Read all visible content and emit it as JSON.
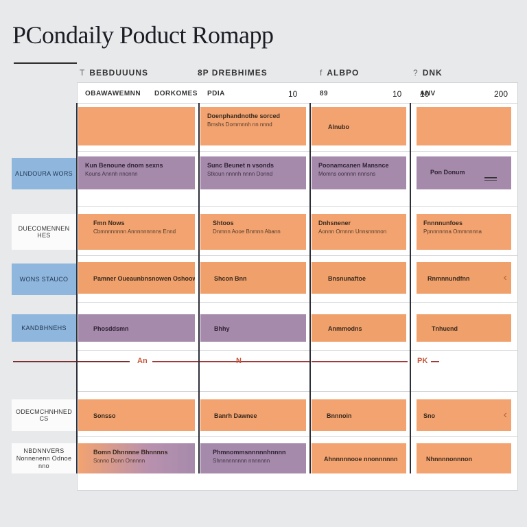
{
  "title": "PCondaily Poduct Romapp",
  "columns": [
    {
      "header": "BEBDUUUNS",
      "icon": "T",
      "subheads": [
        "OBAWAWEMNN",
        "DORKOMES"
      ],
      "number": "10"
    },
    {
      "header": "8P DREBHIMES",
      "icon": "",
      "subheads": [
        "PDIA"
      ],
      "number": "10"
    },
    {
      "header": "ALBPO",
      "icon": "f",
      "subheads": [
        "89"
      ],
      "number": "10"
    },
    {
      "header": "DNK",
      "icon": "?",
      "subheads": [
        "ANV"
      ],
      "number": "200"
    }
  ],
  "lanes": [
    {
      "label": "",
      "cards": [
        {
          "title": "",
          "sub": "",
          "color": "orange"
        },
        {
          "title": "Doenphandnothe sorced",
          "sub": "Bmshs Dommnnh nn nnnd",
          "color": "orange"
        },
        {
          "title": "Alnubo",
          "sub": "",
          "color": "orange"
        },
        {
          "title": "",
          "sub": "",
          "color": "orange"
        }
      ]
    },
    {
      "label": "ALNDOURA WORS",
      "cards": [
        {
          "title": "Kun Benoune dnom sexns",
          "sub": "Kouns Annnh nnonnn",
          "color": "purple"
        },
        {
          "title": "Sunc Beunet n vsonds",
          "sub": "Stkoun nnnnh nnnn Donnd",
          "color": "purple"
        },
        {
          "title": "Poonamcanen Mansnce",
          "sub": "Momns oonnnn nnnsns",
          "color": "purple"
        },
        {
          "title": "Pon Donum",
          "sub": "",
          "color": "purple"
        }
      ]
    },
    {
      "label": "DUECOMENNEN HES",
      "cards": [
        {
          "title": "Fmn Nows",
          "sub": "Cbmnnnnnnn Annnnnnnnns Ennd",
          "color": "orange"
        },
        {
          "title": "Shtoos",
          "sub": "Dnmnn Aooe Bnmnn Abann",
          "color": "orange"
        },
        {
          "title": "Dnhsnener",
          "sub": "Aonnn Omnnn Unnsnnnnon",
          "color": "orange"
        },
        {
          "title": "Fnnnnunfoes",
          "sub": "Ppnnnnnna Ommnnnna",
          "color": "orange"
        }
      ]
    },
    {
      "label": "WONS STAUCO",
      "cards": [
        {
          "title": "Pamner Oueaunbnsnowen Oshoow",
          "sub": "",
          "color": "orange2"
        },
        {
          "title": "Shcon Bnn",
          "sub": "",
          "color": "orange2"
        },
        {
          "title": "Bnsnunaftoe",
          "sub": "",
          "color": "orange2"
        },
        {
          "title": "Rnmnnundfnn",
          "sub": "",
          "color": "orange2"
        }
      ]
    },
    {
      "label": "KANDBHNEHS",
      "cards": [
        {
          "title": "Phosddsmn",
          "sub": "",
          "color": "purple"
        },
        {
          "title": "Bhhy",
          "sub": "",
          "color": "purple"
        },
        {
          "title": "Anmmodns",
          "sub": "",
          "color": "orange2"
        },
        {
          "title": "Tnhuend",
          "sub": "",
          "color": "orange2"
        }
      ]
    },
    {
      "label": "ODECMCHNHNED CS",
      "cards": [
        {
          "title": "Sonsso",
          "sub": "",
          "color": "orange"
        },
        {
          "title": "Banrh Dawnee",
          "sub": "",
          "color": "orange"
        },
        {
          "title": "Bnnnoin",
          "sub": "",
          "color": "orange"
        },
        {
          "title": "Sno",
          "sub": "",
          "color": "orange"
        }
      ]
    },
    {
      "label": "NBDNNVERS",
      "label2": "Nonnenenn Odnoe nno",
      "cards": [
        {
          "title": "Bomn Dhnnnne Bhnnnns",
          "sub": "Sonno Donn Onnnnn",
          "color": "purple"
        },
        {
          "title": "Phmnommsnnnnnhnnnn",
          "sub": "Shnnnnnnnnn nnnnnnn",
          "color": "purple"
        },
        {
          "title": "Ahnnnnnooe nnonnnnnn",
          "sub": "",
          "color": "orange"
        },
        {
          "title": "Nhnnnnonnnon",
          "sub": "",
          "color": "orange"
        }
      ]
    }
  ],
  "divider_labels": [
    "An",
    "N",
    "PK"
  ],
  "colors": {
    "orange": "#f2a370",
    "purple": "#a68aac",
    "blue_label": "#8fb6dd"
  }
}
